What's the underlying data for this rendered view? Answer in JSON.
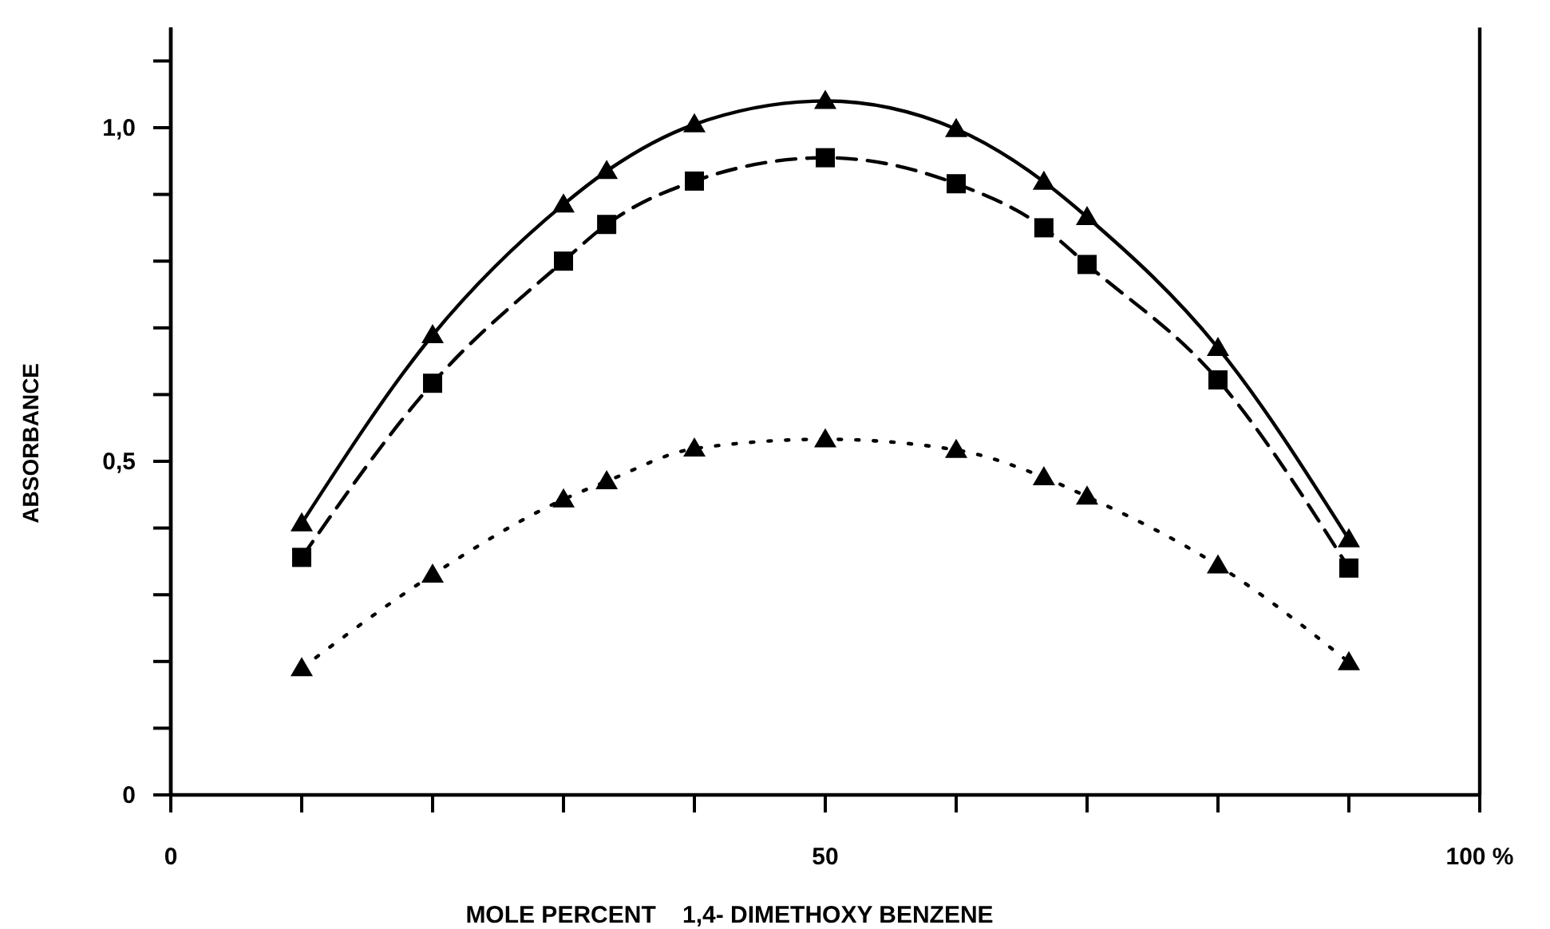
{
  "chart_data": {
    "type": "line",
    "xlabel": "MOLE PERCENT    1,4- DIMETHOXY BENZENE",
    "ylabel": "ABSORBANCE",
    "xlim": [
      0,
      100
    ],
    "ylim": [
      0,
      1.15
    ],
    "xticks": [
      0,
      {
        "value": 10,
        "label": null
      },
      {
        "value": 20,
        "label": null
      },
      {
        "value": 30,
        "label": null
      },
      {
        "value": 40,
        "label": null
      },
      50,
      {
        "value": 60,
        "label": null
      },
      {
        "value": 70,
        "label": null
      },
      {
        "value": 80,
        "label": null
      },
      {
        "value": 90,
        "label": null
      },
      {
        "value": 100,
        "label": "100 %"
      }
    ],
    "yticks": [
      0,
      {
        "value": 0.1,
        "label": null
      },
      {
        "value": 0.2,
        "label": null
      },
      {
        "value": 0.3,
        "label": null
      },
      {
        "value": 0.4,
        "label": null
      },
      {
        "value": 0.5,
        "label": "0,5"
      },
      {
        "value": 0.6,
        "label": null
      },
      {
        "value": 0.7,
        "label": null
      },
      {
        "value": 0.8,
        "label": null
      },
      {
        "value": 0.9,
        "label": null
      },
      {
        "value": 1.0,
        "label": "1,0"
      },
      {
        "value": 1.1,
        "label": null
      }
    ],
    "x": [
      10,
      20,
      30,
      33.3,
      40,
      50,
      60,
      66.7,
      70,
      80,
      90
    ],
    "series": [
      {
        "color": "#000000",
        "marker": "triangle",
        "line_style": "solid",
        "values": [
          0.407,
          0.689,
          0.885,
          0.935,
          1.005,
          1.04,
          0.998,
          0.919,
          0.866,
          0.67,
          0.383
        ]
      },
      {
        "color": "#000000",
        "marker": "square",
        "line_style": "dashed",
        "values": [
          0.356,
          0.617,
          0.8,
          0.855,
          0.92,
          0.955,
          0.916,
          0.85,
          0.795,
          0.622,
          0.34
        ]
      },
      {
        "color": "#000000",
        "marker": "triangle",
        "line_style": "dotted",
        "values": [
          0.19,
          0.33,
          0.443,
          0.47,
          0.519,
          0.533,
          0.517,
          0.476,
          0.447,
          0.344,
          0.199
        ]
      }
    ],
    "ref_lines": [
      {
        "axis": "x",
        "value": 100
      }
    ]
  }
}
